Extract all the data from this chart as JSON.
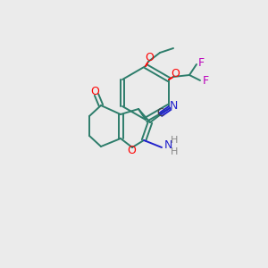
{
  "bg_color": "#ebebeb",
  "bond_color": "#2d7d6b",
  "atom_colors": {
    "O": "#ff0000",
    "N": "#2222cc",
    "F": "#bb00bb",
    "C_label": "#444444",
    "H": "#888888"
  },
  "figsize": [
    3.0,
    3.0
  ],
  "dpi": 100
}
